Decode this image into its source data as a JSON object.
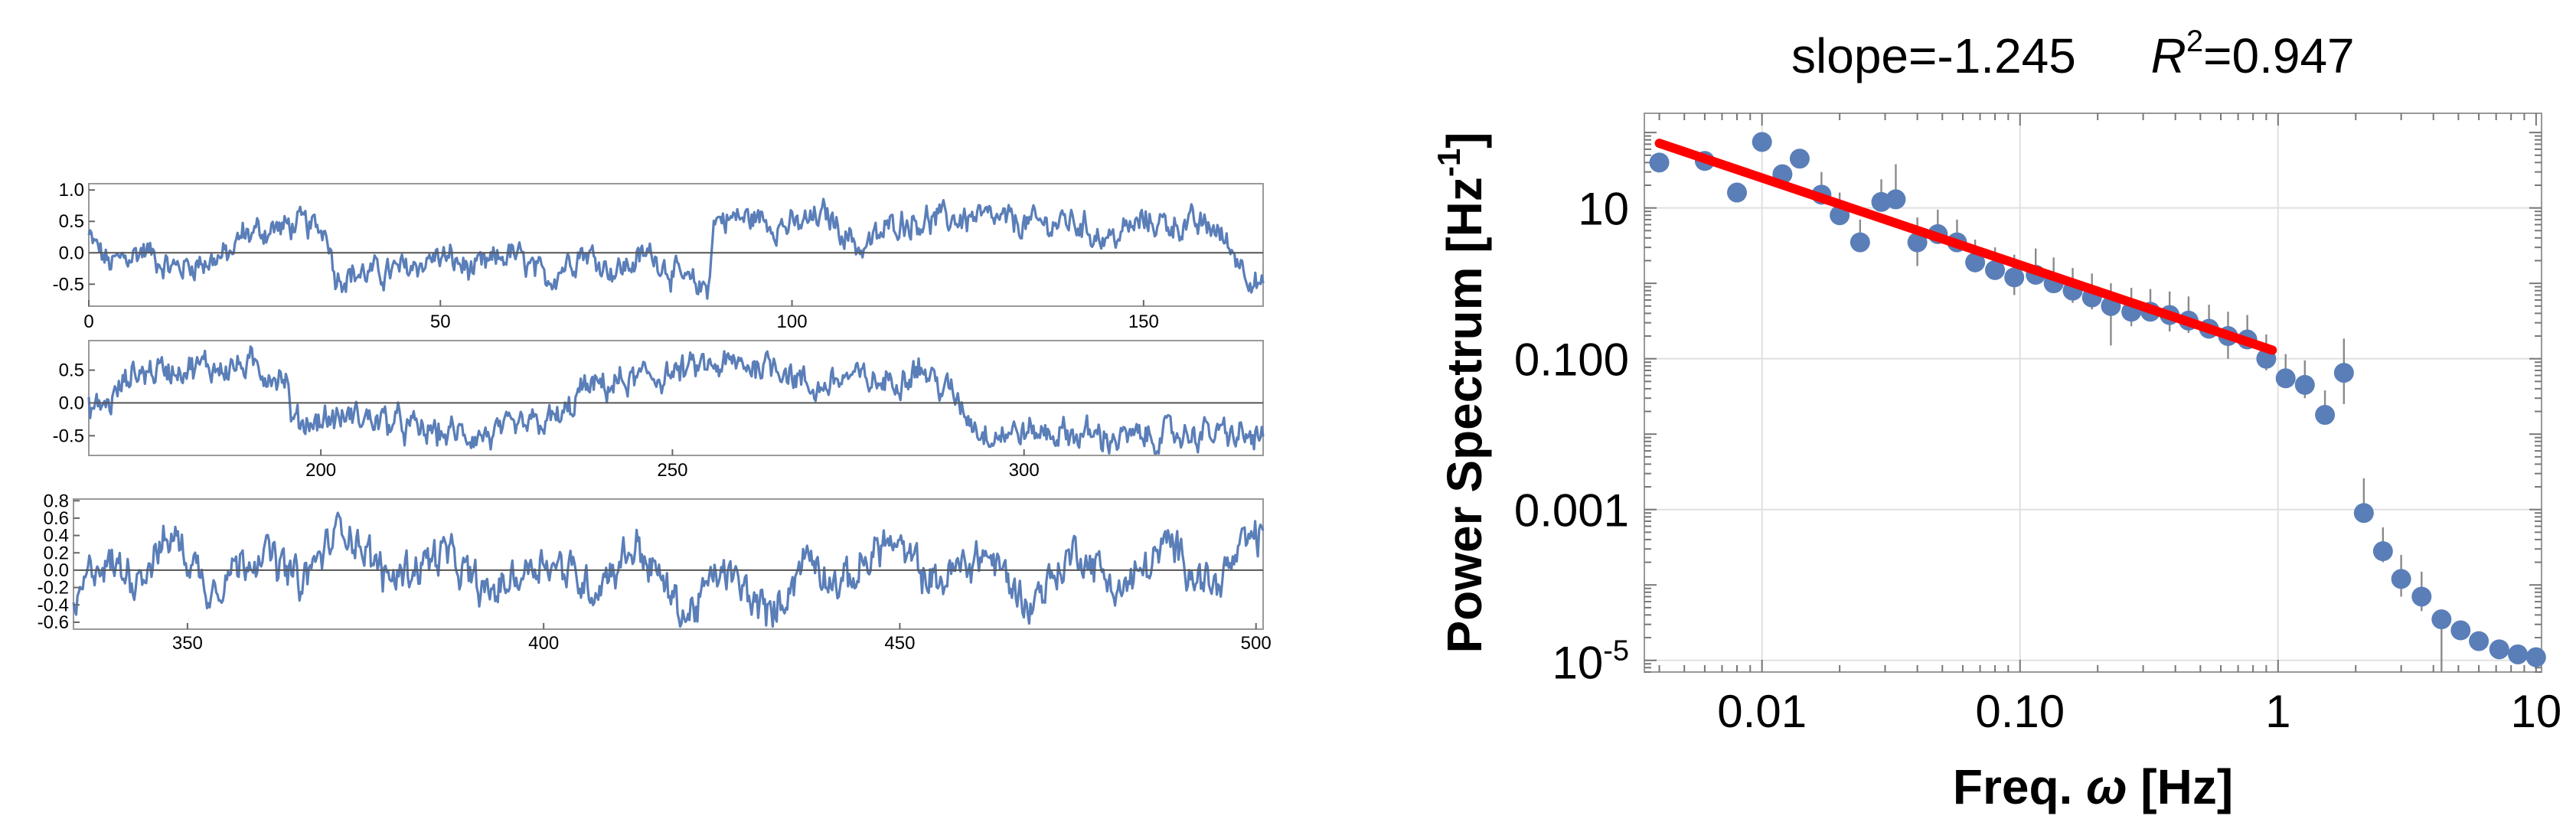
{
  "chart_data": [
    {
      "type": "line",
      "panel": 1,
      "x_range": [
        0,
        167
      ],
      "ylim": [
        -0.85,
        1.1
      ],
      "x_ticks": [
        0,
        50,
        100,
        150
      ],
      "y_ticks": [
        -0.5,
        0.0,
        0.5,
        1.0
      ],
      "y_tick_labels": [
        "-0.5",
        "0.0",
        "0.5",
        "1.0"
      ],
      "color": "#5a7eb8",
      "levels": [
        [
          0,
          0.25
        ],
        [
          3,
          -0.2
        ],
        [
          8,
          0.05
        ],
        [
          12,
          -0.25
        ],
        [
          20,
          -0.05
        ],
        [
          22,
          0.3
        ],
        [
          30,
          0.45
        ],
        [
          34,
          0.35
        ],
        [
          35,
          -0.35
        ],
        [
          44,
          -0.3
        ],
        [
          50,
          -0.05
        ],
        [
          55,
          -0.3
        ],
        [
          60,
          0.0
        ],
        [
          65,
          -0.45
        ],
        [
          70,
          0.05
        ],
        [
          75,
          -0.3
        ],
        [
          80,
          0.0
        ],
        [
          85,
          -0.5
        ],
        [
          88,
          -0.55
        ],
        [
          89,
          0.55
        ],
        [
          95,
          0.55
        ],
        [
          100,
          0.4
        ],
        [
          105,
          0.6
        ],
        [
          110,
          0.05
        ],
        [
          115,
          0.5
        ],
        [
          125,
          0.55
        ],
        [
          135,
          0.45
        ],
        [
          140,
          0.5
        ],
        [
          145,
          0.2
        ],
        [
          150,
          0.5
        ],
        [
          160,
          0.4
        ],
        [
          167,
          -0.6
        ]
      ]
    },
    {
      "type": "line",
      "panel": 2,
      "x_range": [
        167,
        334
      ],
      "ylim": [
        -0.8,
        0.95
      ],
      "x_ticks": [
        200,
        250,
        300
      ],
      "y_ticks": [
        -0.5,
        0.0,
        0.5
      ],
      "y_tick_labels": [
        "-0.5",
        "0.0",
        "0.5"
      ],
      "color": "#5a7eb8",
      "levels": [
        [
          167,
          -0.1
        ],
        [
          170,
          0.0
        ],
        [
          173,
          0.45
        ],
        [
          180,
          0.55
        ],
        [
          190,
          0.55
        ],
        [
          195,
          0.4
        ],
        [
          196,
          -0.3
        ],
        [
          205,
          -0.2
        ],
        [
          210,
          -0.3
        ],
        [
          215,
          -0.45
        ],
        [
          225,
          -0.5
        ],
        [
          235,
          -0.2
        ],
        [
          237,
          0.2
        ],
        [
          245,
          0.35
        ],
        [
          255,
          0.55
        ],
        [
          265,
          0.6
        ],
        [
          270,
          0.2
        ],
        [
          275,
          0.4
        ],
        [
          280,
          0.3
        ],
        [
          285,
          0.55
        ],
        [
          290,
          0.1
        ],
        [
          294,
          -0.45
        ],
        [
          305,
          -0.45
        ],
        [
          315,
          -0.55
        ],
        [
          325,
          -0.45
        ],
        [
          334,
          -0.55
        ]
      ]
    },
    {
      "type": "line",
      "panel": 3,
      "x_range": [
        334,
        501
      ],
      "ylim": [
        -0.68,
        0.82
      ],
      "x_ticks": [
        350,
        400,
        450,
        500
      ],
      "y_ticks": [
        -0.6,
        -0.4,
        -0.2,
        0.0,
        0.2,
        0.4,
        0.6,
        0.8
      ],
      "y_tick_labels": [
        "-0.6",
        "-0.4",
        "-0.2",
        "0.0",
        "0.2",
        "0.4",
        "0.6",
        "0.8"
      ],
      "color": "#5a7eb8",
      "levels": [
        [
          334,
          -0.55
        ],
        [
          337,
          0.1
        ],
        [
          343,
          -0.05
        ],
        [
          348,
          0.4
        ],
        [
          353,
          -0.2
        ],
        [
          360,
          0.25
        ],
        [
          366,
          -0.15
        ],
        [
          372,
          0.55
        ],
        [
          378,
          -0.1
        ],
        [
          386,
          0.2
        ],
        [
          392,
          -0.3
        ],
        [
          400,
          0.15
        ],
        [
          407,
          -0.2
        ],
        [
          413,
          0.3
        ],
        [
          420,
          -0.55
        ],
        [
          425,
          0.0
        ],
        [
          432,
          -0.55
        ],
        [
          437,
          0.2
        ],
        [
          442,
          -0.2
        ],
        [
          448,
          0.35
        ],
        [
          455,
          -0.15
        ],
        [
          462,
          0.2
        ],
        [
          468,
          -0.4
        ],
        [
          475,
          0.25
        ],
        [
          481,
          -0.25
        ],
        [
          488,
          0.3
        ],
        [
          494,
          -0.2
        ],
        [
          500,
          0.4
        ]
      ]
    },
    {
      "type": "scatter",
      "title_parts": {
        "slope": "slope=-1.245",
        "r2_lhs": "R",
        "r2_sup": "2",
        "r2_rhs": "=0.947"
      },
      "xlabel": {
        "main": "Freq. ",
        "omega": "ω",
        "unit": " [Hz]"
      },
      "ylabel": {
        "main": "Power Spectrum [Hz",
        "sup": "-1",
        "end": "]"
      },
      "x_scale": "log",
      "y_scale": "log",
      "xlim": [
        0.0035,
        10.5
      ],
      "ylim": [
        7e-06,
        180
      ],
      "x_tick_values": [
        0.01,
        0.1,
        1,
        10
      ],
      "x_tick_labels": [
        "0.01",
        "0.10",
        "1",
        "10"
      ],
      "y_tick_values": [
        10,
        0.1,
        0.001
      ],
      "y_tick_labels": [
        "10",
        "0.100",
        "0.001"
      ],
      "y_tick_last": {
        "base": "10",
        "exp": "-5"
      },
      "y_tick_last_value": 1e-05,
      "grid": true,
      "marker_color": "#5a7eb8",
      "fit_color": "#ff0000",
      "fit_line": {
        "x": [
          0.004,
          0.95
        ],
        "y": [
          72,
          0.13
        ]
      },
      "points": [
        {
          "x": 0.004,
          "y": 40,
          "err_low": 40
        },
        {
          "x": 0.006,
          "y": 42,
          "err_low": 42
        },
        {
          "x": 0.008,
          "y": 16,
          "err_low": 16
        },
        {
          "x": 0.01,
          "y": 75,
          "err_low": 75
        },
        {
          "x": 0.012,
          "y": 28,
          "err_low": 28
        },
        {
          "x": 0.014,
          "y": 45,
          "err_low": 45
        },
        {
          "x": 0.017,
          "y": 15,
          "err_low": 0.6,
          "err_high": 15
        },
        {
          "x": 0.02,
          "y": 8,
          "err_low": 2,
          "err_high": 8
        },
        {
          "x": 0.024,
          "y": 3.5,
          "err_low": 0.9,
          "err_high": 3.5
        },
        {
          "x": 0.029,
          "y": 12,
          "err_low": 1.5,
          "err_high": 12
        },
        {
          "x": 0.033,
          "y": 13,
          "err_low": 0.9,
          "err_high": 25
        },
        {
          "x": 0.04,
          "y": 3.5,
          "err_low": 1.8,
          "err_high": 4
        },
        {
          "x": 0.048,
          "y": 4.5,
          "err_low": 1.0,
          "err_high": 5
        },
        {
          "x": 0.057,
          "y": 3.5,
          "err_low": 0.8,
          "err_high": 3.5
        },
        {
          "x": 0.067,
          "y": 1.9,
          "err_low": 0.5,
          "err_high": 1.9
        },
        {
          "x": 0.08,
          "y": 1.5,
          "err_low": 0.25,
          "err_high": 1.5
        },
        {
          "x": 0.095,
          "y": 1.2,
          "err_low": 0.5,
          "err_high": 1.2
        },
        {
          "x": 0.115,
          "y": 1.3,
          "err_low": 0.28,
          "err_high": 1.6
        },
        {
          "x": 0.135,
          "y": 1.0,
          "err_low": 0.2,
          "err_high": 1.2
        },
        {
          "x": 0.16,
          "y": 0.8,
          "err_low": 0.25,
          "err_high": 0.8
        },
        {
          "x": 0.19,
          "y": 0.65,
          "err_low": 0.2,
          "err_high": 0.7
        },
        {
          "x": 0.225,
          "y": 0.5,
          "err_low": 0.35,
          "err_high": 0.5
        },
        {
          "x": 0.27,
          "y": 0.42,
          "err_low": 0.15,
          "err_high": 0.45
        },
        {
          "x": 0.32,
          "y": 0.42,
          "err_low": 0.00065,
          "err_high": 0.42
        },
        {
          "x": 0.38,
          "y": 0.38,
          "err_low": 0.15,
          "err_high": 0.4
        },
        {
          "x": 0.45,
          "y": 0.32,
          "err_low": 0.1,
          "err_high": 0.35
        },
        {
          "x": 0.54,
          "y": 0.25,
          "err_low": 0.06,
          "err_high": 0.27
        },
        {
          "x": 0.64,
          "y": 0.2,
          "err_low": 0.1,
          "err_high": 0.22
        },
        {
          "x": 0.76,
          "y": 0.18,
          "err_low": 0.04,
          "err_high": 0.2
        },
        {
          "x": 0.9,
          "y": 0.1,
          "err_low": 0.03,
          "err_high": 0.11
        },
        {
          "x": 1.07,
          "y": 0.055,
          "err_low": 0.012,
          "err_high": 0.06
        },
        {
          "x": 1.27,
          "y": 0.045,
          "err_low": 0.015,
          "err_high": 0.05
        },
        {
          "x": 1.52,
          "y": 0.018,
          "err_low": 0.004,
          "err_high": 0.02
        },
        {
          "x": 1.8,
          "y": 0.065,
          "err_low": 0.04,
          "err_high": 0.12
        },
        {
          "x": 2.15,
          "y": 0.0009,
          "err_low": 0.0002,
          "err_high": 0.0017
        },
        {
          "x": 2.55,
          "y": 0.00028,
          "err_low": 8e-05,
          "err_high": 0.0003
        },
        {
          "x": 3.0,
          "y": 0.00012,
          "err_low": 5e-05,
          "err_high": 0.00013
        },
        {
          "x": 3.6,
          "y": 7e-05,
          "err_low": 2.5e-05,
          "err_high": 8e-05
        },
        {
          "x": 4.3,
          "y": 3.5e-05,
          "err_low": 3e-05
        },
        {
          "x": 5.1,
          "y": 2.5e-05
        },
        {
          "x": 6.0,
          "y": 1.8e-05
        },
        {
          "x": 7.2,
          "y": 1.4e-05
        },
        {
          "x": 8.5,
          "y": 1.2e-05
        },
        {
          "x": 10.0,
          "y": 1.1e-05
        }
      ]
    }
  ]
}
